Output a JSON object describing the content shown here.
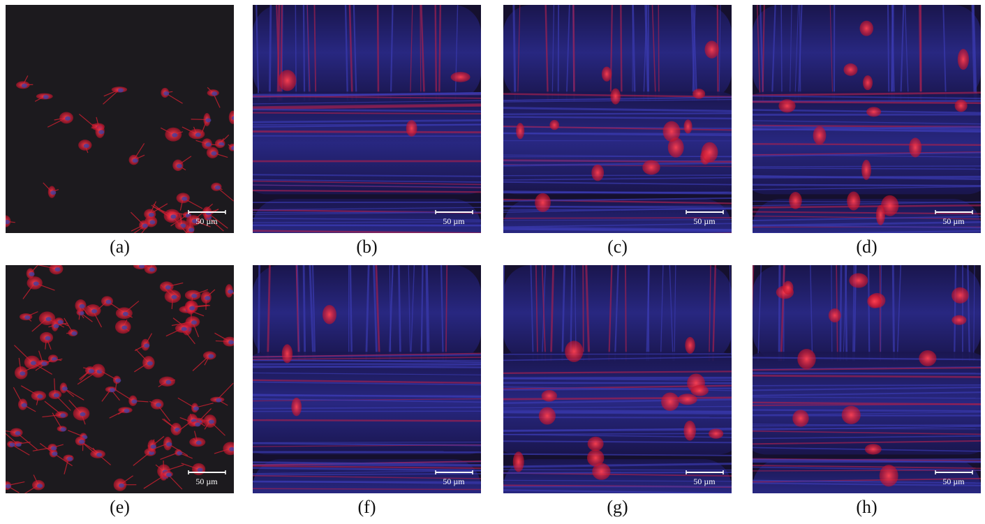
{
  "panels": [
    {
      "label": "(a)",
      "scale_bar": "50 µm"
    },
    {
      "label": "(b)",
      "scale_bar": "50 µm"
    },
    {
      "label": "(c)",
      "scale_bar": "50 µm"
    },
    {
      "label": "(d)",
      "scale_bar": "50 µm"
    },
    {
      "label": "(e)",
      "scale_bar": "50 µm"
    },
    {
      "label": "(f)",
      "scale_bar": "50 µm"
    },
    {
      "label": "(g)",
      "scale_bar": "50 µm"
    },
    {
      "label": "(h)",
      "scale_bar": "50 µm"
    }
  ]
}
